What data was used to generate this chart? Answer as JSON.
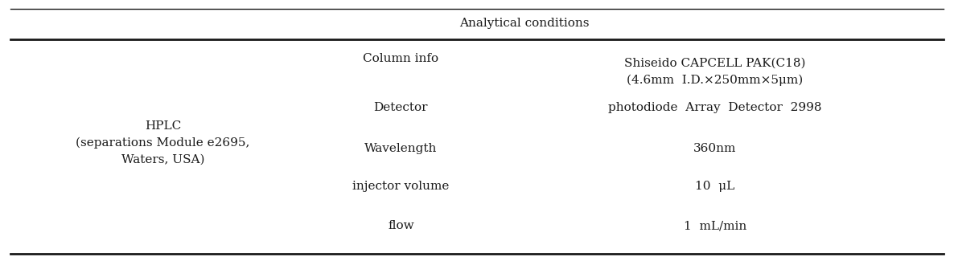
{
  "title": "Analytical conditions",
  "col1_header": "HPLC\n(separations Module e2695,\nWaters, USA)",
  "col2_labels": [
    "Column info",
    "Detector",
    "Wavelength",
    "injector volume",
    "flow"
  ],
  "col3_values": [
    "Shiseido CAPCELL PAK(C18)\n(4.6mm  I.D.×250mm×5μm)",
    "photodiode  Array  Detector  2998",
    "360nm",
    "10  μL",
    "1  mL/min"
  ],
  "bg_color": "#ffffff",
  "text_color": "#1a1a1a",
  "font_size": 11,
  "title_font_size": 11,
  "line_color": "#1a1a1a"
}
